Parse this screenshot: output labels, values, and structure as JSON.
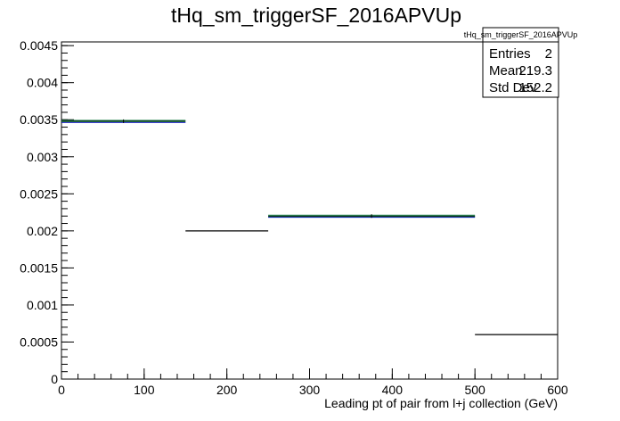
{
  "chart_data": {
    "type": "bar",
    "style": "step-histogram",
    "title": "tHq_sm_triggerSF_2016APVUp",
    "xlabel": "Leading pt of pair from l+j collection (GeV)",
    "ylabel": "",
    "xlim": [
      0,
      600
    ],
    "ylim": [
      0,
      0.00455
    ],
    "xticks": [
      "0",
      "100",
      "200",
      "300",
      "400",
      "500",
      "600"
    ],
    "yticks": [
      "0",
      "0.0005",
      "0.001",
      "0.0015",
      "0.002",
      "0.0025",
      "0.003",
      "0.0035",
      "0.004",
      "0.0045"
    ],
    "bins": [
      {
        "xlow": 0,
        "xhigh": 150,
        "value": 0.00348,
        "highlighted": true
      },
      {
        "xlow": 150,
        "xhigh": 250,
        "value": 0.002,
        "highlighted": false
      },
      {
        "xlow": 250,
        "xhigh": 500,
        "value": 0.0022,
        "highlighted": true
      },
      {
        "xlow": 500,
        "xhigh": 600,
        "value": 0.0006,
        "highlighted": false
      }
    ],
    "colors": {
      "line": "#000000",
      "highlight": "#2e8b57",
      "highlight_edge": "#0000cc"
    },
    "stats": {
      "name": "tHq_sm_triggerSF_2016APVUp",
      "rows": [
        {
          "label": "Entries",
          "value": "2"
        },
        {
          "label": "Mean",
          "value": "219.3"
        },
        {
          "label": "Std Dev",
          "value": "152.2"
        }
      ]
    }
  }
}
